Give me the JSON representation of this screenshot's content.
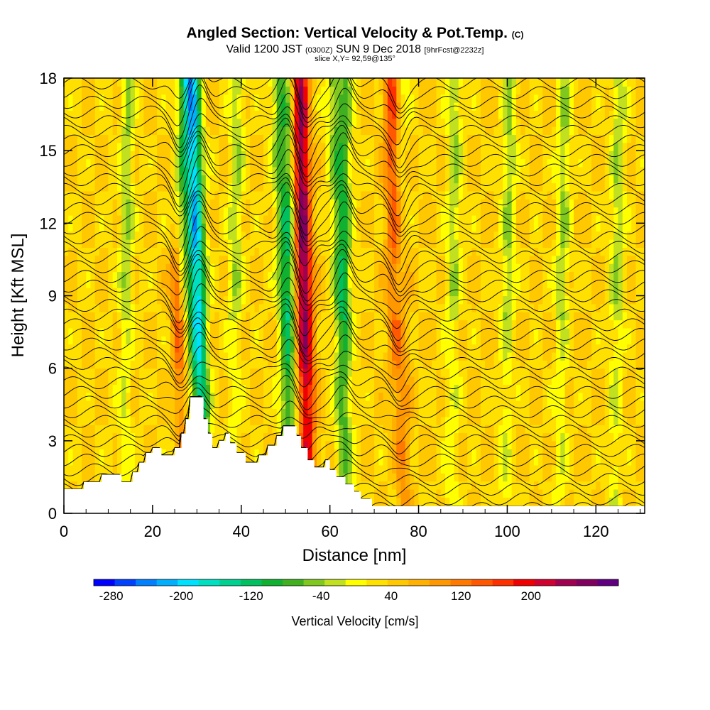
{
  "title": {
    "main": "Angled Section: Vertical Velocity & Pot.Temp.",
    "suffix": "(C)",
    "valid_prefix": "Valid 1200 JST",
    "valid_utc": "(0300Z)",
    "valid_date": "SUN 9 Dec 2018",
    "forecast": "[9hrFcst@2232z]",
    "slice": "slice X,Y= 92,59@135°"
  },
  "chart_data": {
    "type": "heatmap",
    "xlabel": "Distance [nm]",
    "ylabel": "Height [Kft MSL]",
    "xlim": [
      0,
      131
    ],
    "ylim": [
      0,
      18
    ],
    "x_ticks": [
      0,
      20,
      40,
      60,
      80,
      100,
      120
    ],
    "y_ticks": [
      0,
      3,
      6,
      9,
      12,
      15,
      18
    ],
    "colorbar": {
      "label": "Vertical Velocity [cm/s]",
      "range": [
        -300,
        300
      ],
      "tick_values": [
        -280,
        -200,
        -120,
        -40,
        40,
        120,
        200
      ],
      "tick_labels": [
        "-280",
        "-200",
        "-120",
        "-40",
        "40",
        "120",
        "200"
      ],
      "colors": [
        "#0000ff",
        "#0040ff",
        "#0080ff",
        "#00b0ff",
        "#00e0ff",
        "#00e0c0",
        "#00d090",
        "#00c060",
        "#10b030",
        "#40b020",
        "#80c820",
        "#c0e020",
        "#ffff00",
        "#ffe000",
        "#ffc800",
        "#ffb000",
        "#ff9800",
        "#ff7800",
        "#ff5800",
        "#ff3000",
        "#f00000",
        "#d00030",
        "#a00050",
        "#800060",
        "#600080"
      ]
    },
    "terrain_kft": [
      [
        0,
        1.0
      ],
      [
        4.5,
        1.0
      ],
      [
        4.5,
        1.3
      ],
      [
        8.5,
        1.3
      ],
      [
        8.5,
        1.6
      ],
      [
        13,
        1.6
      ],
      [
        13,
        1.3
      ],
      [
        15.5,
        1.3
      ],
      [
        15.5,
        1.7
      ],
      [
        17,
        1.7
      ],
      [
        17,
        2.1
      ],
      [
        18.5,
        2.1
      ],
      [
        18.5,
        2.5
      ],
      [
        20,
        2.5
      ],
      [
        20,
        2.7
      ],
      [
        22,
        2.7
      ],
      [
        22,
        2.4
      ],
      [
        25,
        2.4
      ],
      [
        25,
        2.7
      ],
      [
        26.5,
        2.7
      ],
      [
        26.5,
        3.3
      ],
      [
        27.5,
        3.3
      ],
      [
        27.5,
        3.9
      ],
      [
        28.5,
        3.9
      ],
      [
        28.5,
        4.8
      ],
      [
        31.5,
        4.8
      ],
      [
        31.5,
        3.9
      ],
      [
        32.5,
        3.9
      ],
      [
        32.5,
        3.3
      ],
      [
        33.5,
        3.3
      ],
      [
        33.5,
        2.7
      ],
      [
        35,
        2.7
      ],
      [
        35,
        3.0
      ],
      [
        36.5,
        3.0
      ],
      [
        36.5,
        3.3
      ],
      [
        37.5,
        3.3
      ],
      [
        37.5,
        2.9
      ],
      [
        39,
        2.9
      ],
      [
        39,
        2.5
      ],
      [
        41,
        2.5
      ],
      [
        41,
        2.1
      ],
      [
        44,
        2.1
      ],
      [
        44,
        2.4
      ],
      [
        46,
        2.4
      ],
      [
        46,
        2.8
      ],
      [
        48,
        2.8
      ],
      [
        48,
        3.2
      ],
      [
        49.5,
        3.2
      ],
      [
        49.5,
        3.6
      ],
      [
        52.5,
        3.6
      ],
      [
        52.5,
        3.2
      ],
      [
        53.5,
        3.2
      ],
      [
        53.5,
        2.7
      ],
      [
        55,
        2.7
      ],
      [
        55,
        2.2
      ],
      [
        56.5,
        2.2
      ],
      [
        56.5,
        1.9
      ],
      [
        59,
        1.9
      ],
      [
        59,
        2.2
      ],
      [
        60,
        2.2
      ],
      [
        60,
        1.8
      ],
      [
        61.5,
        1.8
      ],
      [
        61.5,
        1.5
      ],
      [
        63.5,
        1.5
      ],
      [
        63.5,
        1.2
      ],
      [
        65.5,
        1.2
      ],
      [
        65.5,
        0.9
      ],
      [
        67,
        0.9
      ],
      [
        67,
        0.6
      ],
      [
        69.5,
        0.6
      ],
      [
        69.5,
        0.3
      ],
      [
        71,
        0.3
      ],
      [
        71,
        0.3
      ],
      [
        131,
        0.3
      ]
    ],
    "updrafts": [
      {
        "x_center": 26.0,
        "peak_cm_s": 150,
        "top_kft": 9.5
      },
      {
        "x_center": 54.5,
        "peak_cm_s": 230,
        "top_kft": 18
      },
      {
        "x_center": 75.5,
        "peak_cm_s": 140,
        "top_kft": 18
      }
    ],
    "downdrafts": [
      {
        "x_center": 30.5,
        "peak_cm_s": -240,
        "top_kft": 18
      },
      {
        "x_center": 50.5,
        "peak_cm_s": -110,
        "top_kft": 18
      },
      {
        "x_center": 63.0,
        "peak_cm_s": -90,
        "top_kft": 18
      }
    ],
    "pot_temp_isentropes_per_kft": 2.5
  }
}
